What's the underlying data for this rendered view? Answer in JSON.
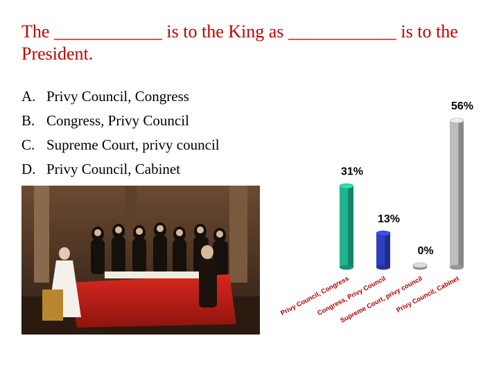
{
  "question": {
    "text": "The ____________ is to the King as ____________ is to the President."
  },
  "options": [
    {
      "letter": "A.",
      "text": "Privy Council, Congress"
    },
    {
      "letter": "B.",
      "text": "Congress, Privy Council"
    },
    {
      "letter": "C.",
      "text": "Supreme Court, privy council"
    },
    {
      "letter": "D.",
      "text": "Privy Council, Cabinet"
    }
  ],
  "image": {
    "subject": "painting-council-meeting"
  },
  "chart_data": {
    "type": "bar",
    "style": "3d-cylinder",
    "categories": [
      "Privy Council, Congress",
      "Congress, Privy Council",
      "Supreme Court, privy council",
      "Privy Council, Cabinet"
    ],
    "values": [
      31,
      13,
      0,
      56
    ],
    "value_labels": [
      "31%",
      "13%",
      "0%",
      "56%"
    ],
    "colors": [
      "#1fb58f",
      "#2f3fc0",
      "#b0b0b0",
      "#bdbdbd"
    ],
    "ylim": [
      0,
      56
    ],
    "grid": false,
    "legend": "none",
    "title": "",
    "xlabel": "",
    "ylabel": ""
  }
}
